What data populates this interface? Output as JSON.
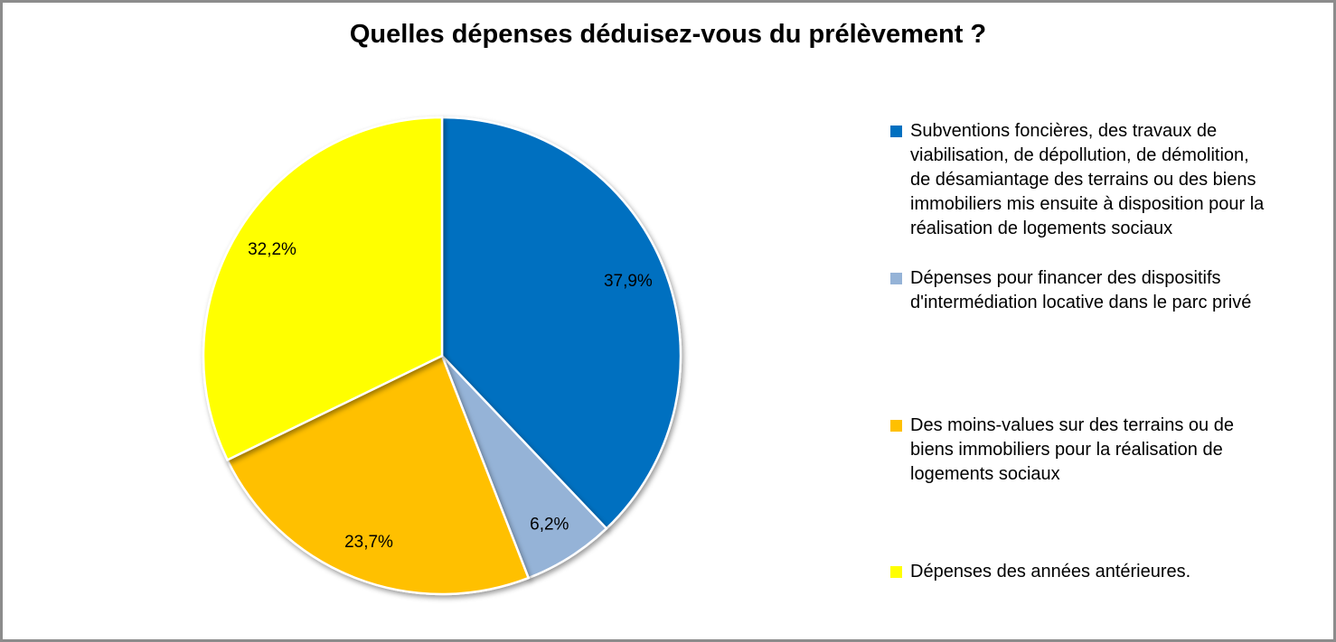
{
  "title": "Quelles dépenses déduisez-vous du prélèvement ?",
  "chart_data": {
    "type": "pie",
    "title": "Quelles dépenses déduisez-vous du prélèvement ?",
    "start_angle_deg": 0,
    "direction": "clockwise",
    "legend_position": "right",
    "label_format": "percent_comma_decimal",
    "border_color": "#8C8C8C",
    "slice_outline_color": "#FFFFFF",
    "slices": [
      {
        "label": "Subventions foncières, des travaux de\nviabilisation, de dépollution, de démolition,\nde désamiantage des terrains ou des biens\nimmobiliers mis ensuite à disposition pour la\nréalisation de logements sociaux",
        "value": 37.9,
        "display": "37,9%",
        "color": "#0070C0"
      },
      {
        "label": "Dépenses pour financer des dispositifs\nd'intermédiation locative dans le parc privé",
        "value": 6.2,
        "display": "6,2%",
        "color": "#95B3D7"
      },
      {
        "label": "Des moins-values sur des terrains ou de\nbiens immobiliers pour la réalisation de\nlogements sociaux",
        "value": 23.7,
        "display": "23,7%",
        "color": "#FFC000"
      },
      {
        "label": "Dépenses des années antérieures.",
        "value": 32.2,
        "display": "32,2%",
        "color": "#FFFF00"
      }
    ]
  }
}
